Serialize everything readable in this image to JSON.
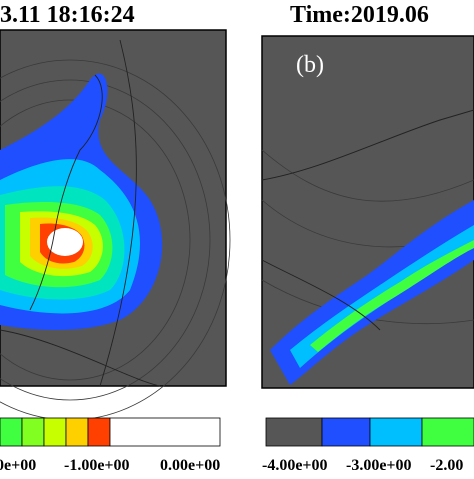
{
  "left_panel": {
    "title": "3.11 18:16:24",
    "colorbar_labels": [
      "0e+00",
      "-1.00e+00",
      "0.00e+00"
    ]
  },
  "right_panel": {
    "title": "Time:2019.06",
    "label": "(b)",
    "colorbar_labels": [
      "-4.00e+00",
      "-3.00e+00",
      "-2.00"
    ]
  }
}
